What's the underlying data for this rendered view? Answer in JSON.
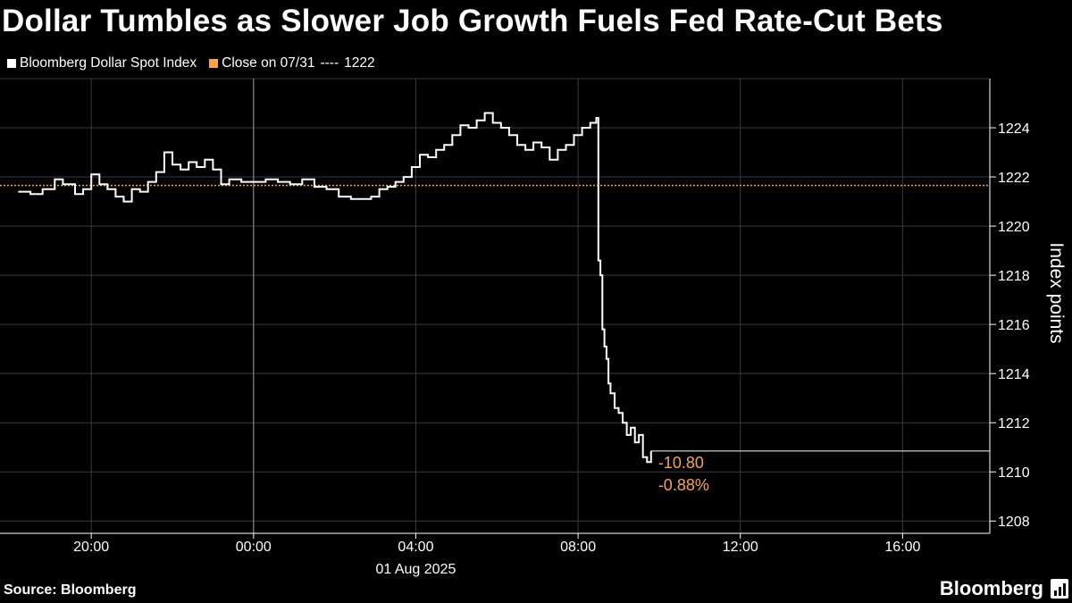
{
  "header": {
    "title": "Dollar Tumbles as Slower Job Growth Fuels Fed Rate-Cut Bets"
  },
  "legend": {
    "series_label": "Bloomberg Dollar Spot Index",
    "close_label": "Close on 07/31",
    "close_dash": "----",
    "close_value": "1222"
  },
  "footer": {
    "source": "Source: Bloomberg",
    "brand": "Bloomberg"
  },
  "colors": {
    "line": "#ffffff",
    "reference": "#f7a44b",
    "grid": "#3a3a3a",
    "background": "#000000"
  },
  "chart_data": {
    "type": "line",
    "ylabel": "Index points",
    "ylim": [
      1207.5,
      1226
    ],
    "yticks": [
      1208,
      1210,
      1212,
      1214,
      1216,
      1218,
      1220,
      1222,
      1224
    ],
    "ytick_labels": [
      "1208",
      "1210",
      "1212",
      "1214",
      "1216",
      "1218",
      "1220",
      "1222",
      "1224"
    ],
    "xlim": [
      17.75,
      42.15
    ],
    "xticks": [
      20,
      24,
      28,
      32,
      36,
      40
    ],
    "xtick_labels": [
      "20:00",
      "00:00",
      "04:00",
      "08:00",
      "12:00",
      "16:00"
    ],
    "x_sublabel": "01 Aug 2025",
    "x_sublabel_at": 28,
    "day_separator_x": 24,
    "grid": true,
    "reference_line": {
      "name": "Close on 07/31",
      "value": 1221.65
    },
    "annotations": {
      "last_value": 1210.85,
      "change": "-10.80",
      "change_pct": "-0.88%"
    },
    "series": [
      {
        "name": "Bloomberg Dollar Spot Index",
        "x": [
          18.2,
          18.5,
          18.8,
          19.1,
          19.3,
          19.6,
          19.8,
          20.0,
          20.2,
          20.4,
          20.6,
          20.8,
          21.0,
          21.2,
          21.4,
          21.6,
          21.8,
          22.0,
          22.2,
          22.4,
          22.6,
          22.8,
          23.0,
          23.2,
          23.4,
          23.7,
          24.0,
          24.3,
          24.6,
          24.9,
          25.2,
          25.5,
          25.8,
          26.1,
          26.4,
          26.7,
          26.9,
          27.1,
          27.3,
          27.5,
          27.7,
          27.9,
          28.1,
          28.3,
          28.5,
          28.7,
          28.9,
          29.1,
          29.3,
          29.5,
          29.7,
          29.9,
          30.1,
          30.3,
          30.5,
          30.7,
          30.9,
          31.1,
          31.3,
          31.5,
          31.7,
          31.9,
          32.1,
          32.3,
          32.45,
          32.5,
          32.55,
          32.6,
          32.65,
          32.7,
          32.75,
          32.8,
          32.9,
          33.0,
          33.1,
          33.2,
          33.3,
          33.4,
          33.5,
          33.6,
          33.7,
          33.8
        ],
        "values": [
          1221.4,
          1221.3,
          1221.5,
          1221.9,
          1221.7,
          1221.3,
          1221.5,
          1222.1,
          1221.7,
          1221.5,
          1221.2,
          1221.0,
          1221.5,
          1221.4,
          1221.8,
          1222.2,
          1223.0,
          1222.5,
          1222.3,
          1222.6,
          1222.4,
          1222.7,
          1222.3,
          1221.7,
          1221.9,
          1221.8,
          1221.8,
          1221.9,
          1221.8,
          1221.7,
          1221.9,
          1221.6,
          1221.5,
          1221.2,
          1221.1,
          1221.1,
          1221.2,
          1221.5,
          1221.6,
          1221.8,
          1222.0,
          1222.4,
          1222.9,
          1222.8,
          1223.1,
          1223.3,
          1223.7,
          1224.1,
          1224.0,
          1224.3,
          1224.6,
          1224.2,
          1224.0,
          1223.7,
          1223.3,
          1223.1,
          1223.4,
          1223.2,
          1222.7,
          1223.1,
          1223.3,
          1223.7,
          1224.0,
          1224.2,
          1224.4,
          1218.6,
          1218.0,
          1215.8,
          1215.1,
          1214.6,
          1213.6,
          1213.2,
          1212.6,
          1212.4,
          1212.0,
          1211.5,
          1211.8,
          1211.2,
          1211.5,
          1210.6,
          1210.4,
          1210.85
        ]
      }
    ]
  }
}
